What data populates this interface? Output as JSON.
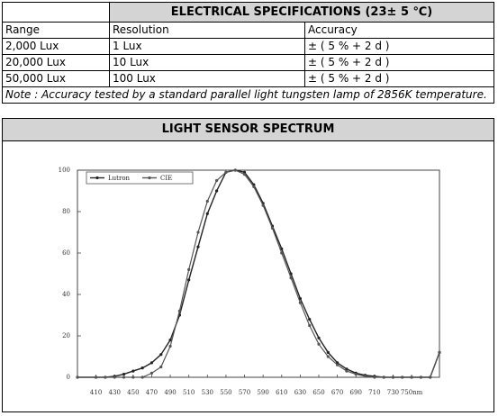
{
  "spec_table": {
    "title": "ELECTRICAL SPECIFICATIONS (23± 5 ℃)",
    "headers": [
      "Range",
      "Resolution",
      "Accuracy"
    ],
    "rows": [
      [
        "2,000 Lux",
        "1 Lux",
        "± ( 5 % + 2 d )"
      ],
      [
        "20,000 Lux",
        "10 Lux",
        "± ( 5 % + 2 d )"
      ],
      [
        "50,000 Lux",
        "100 Lux",
        "± ( 5 % + 2 d )"
      ]
    ],
    "note": "Note : Accuracy tested by a standard parallel light tungsten lamp of 2856K temperature."
  },
  "spectrum": {
    "title": "LIGHT SENSOR SPECTRUM"
  },
  "chart_data": {
    "type": "line",
    "title": "",
    "xlabel": "",
    "ylabel": "",
    "x_unit": "nm",
    "xlim": [
      390,
      780
    ],
    "ylim": [
      0,
      100
    ],
    "x_tick_labels": [
      "410",
      "430",
      "450",
      "470",
      "490",
      "510",
      "530",
      "550",
      "570",
      "590",
      "610",
      "630",
      "650",
      "670",
      "690",
      "710",
      "730",
      "750nm"
    ],
    "y_tick_labels": [
      "0",
      "20",
      "40",
      "60",
      "80",
      "100"
    ],
    "legend_placement": "top-left",
    "grid": false,
    "series": [
      {
        "name": "Lutron",
        "x": [
          390,
          410,
          420,
          430,
          440,
          450,
          460,
          470,
          480,
          490,
          500,
          510,
          520,
          530,
          540,
          550,
          560,
          570,
          580,
          590,
          600,
          610,
          620,
          630,
          640,
          650,
          660,
          670,
          680,
          690,
          700,
          710,
          720,
          730,
          740,
          750,
          760,
          770,
          780
        ],
        "y": [
          0,
          0,
          0,
          0.5,
          1.5,
          3,
          4.5,
          7,
          11,
          18,
          30,
          47,
          63,
          79,
          90,
          99,
          100,
          99,
          93,
          84,
          73,
          62,
          50,
          38,
          28,
          19,
          12,
          7,
          4,
          2,
          1,
          0.5,
          0,
          0,
          0,
          0,
          0,
          0,
          12
        ]
      },
      {
        "name": "CIE",
        "x": [
          390,
          410,
          420,
          430,
          440,
          450,
          460,
          470,
          480,
          490,
          500,
          510,
          520,
          530,
          540,
          550,
          560,
          570,
          580,
          590,
          600,
          610,
          620,
          630,
          640,
          650,
          660,
          670,
          680,
          690,
          700,
          710,
          720,
          730,
          740,
          750,
          760,
          770,
          780
        ],
        "y": [
          0,
          0,
          0,
          0,
          0,
          0,
          0,
          2,
          5,
          15,
          32,
          52,
          70,
          85,
          95,
          99,
          100,
          98,
          92,
          83,
          72,
          60,
          48,
          36,
          25,
          16,
          10,
          6,
          3,
          1.5,
          0.5,
          0,
          0,
          0,
          0,
          0,
          0,
          0,
          12
        ]
      }
    ]
  }
}
